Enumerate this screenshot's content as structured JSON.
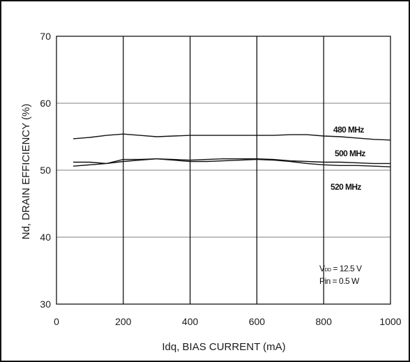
{
  "chart_data": {
    "type": "line",
    "title": "",
    "xlabel": "Idq, BIAS CURRENT  (mA)",
    "ylabel": "Nd, DRAIN EFFICIENCY  (%)",
    "xlim": [
      0,
      1000
    ],
    "ylim": [
      30,
      70
    ],
    "xticks": [
      "0",
      "200",
      "400",
      "600",
      "800",
      "1000"
    ],
    "yticks": [
      "30",
      "40",
      "50",
      "60",
      "70"
    ],
    "grid": true,
    "series": [
      {
        "name": "480 MHz",
        "x": [
          50,
          100,
          150,
          200,
          250,
          300,
          350,
          400,
          450,
          500,
          550,
          600,
          650,
          700,
          750,
          800,
          850,
          900,
          950,
          1000
        ],
        "values": [
          54.7,
          54.9,
          55.2,
          55.4,
          55.2,
          55.0,
          55.1,
          55.2,
          55.2,
          55.2,
          55.2,
          55.2,
          55.2,
          55.3,
          55.3,
          55.1,
          55.0,
          54.8,
          54.6,
          54.5
        ]
      },
      {
        "name": "500 MHz",
        "x": [
          50,
          100,
          150,
          200,
          250,
          300,
          350,
          400,
          450,
          500,
          550,
          600,
          650,
          700,
          750,
          800,
          850,
          900,
          950,
          1000
        ],
        "values": [
          51.2,
          51.2,
          51.0,
          51.6,
          51.6,
          51.7,
          51.6,
          51.5,
          51.6,
          51.7,
          51.7,
          51.7,
          51.6,
          51.4,
          51.3,
          51.2,
          51.2,
          51.1,
          51.0,
          51.0
        ]
      },
      {
        "name": "520 MHz",
        "x": [
          50,
          100,
          150,
          200,
          250,
          300,
          350,
          400,
          450,
          500,
          550,
          600,
          650,
          700,
          750,
          800,
          850,
          900,
          950,
          1000
        ],
        "values": [
          50.6,
          50.8,
          51.0,
          51.3,
          51.5,
          51.7,
          51.5,
          51.3,
          51.3,
          51.4,
          51.5,
          51.6,
          51.5,
          51.3,
          51.0,
          50.8,
          50.7,
          50.7,
          50.6,
          50.5
        ]
      }
    ],
    "annotations": [
      "V",
      "DD",
      " = 12.5 V",
      "Pin = 0.5 W"
    ]
  }
}
